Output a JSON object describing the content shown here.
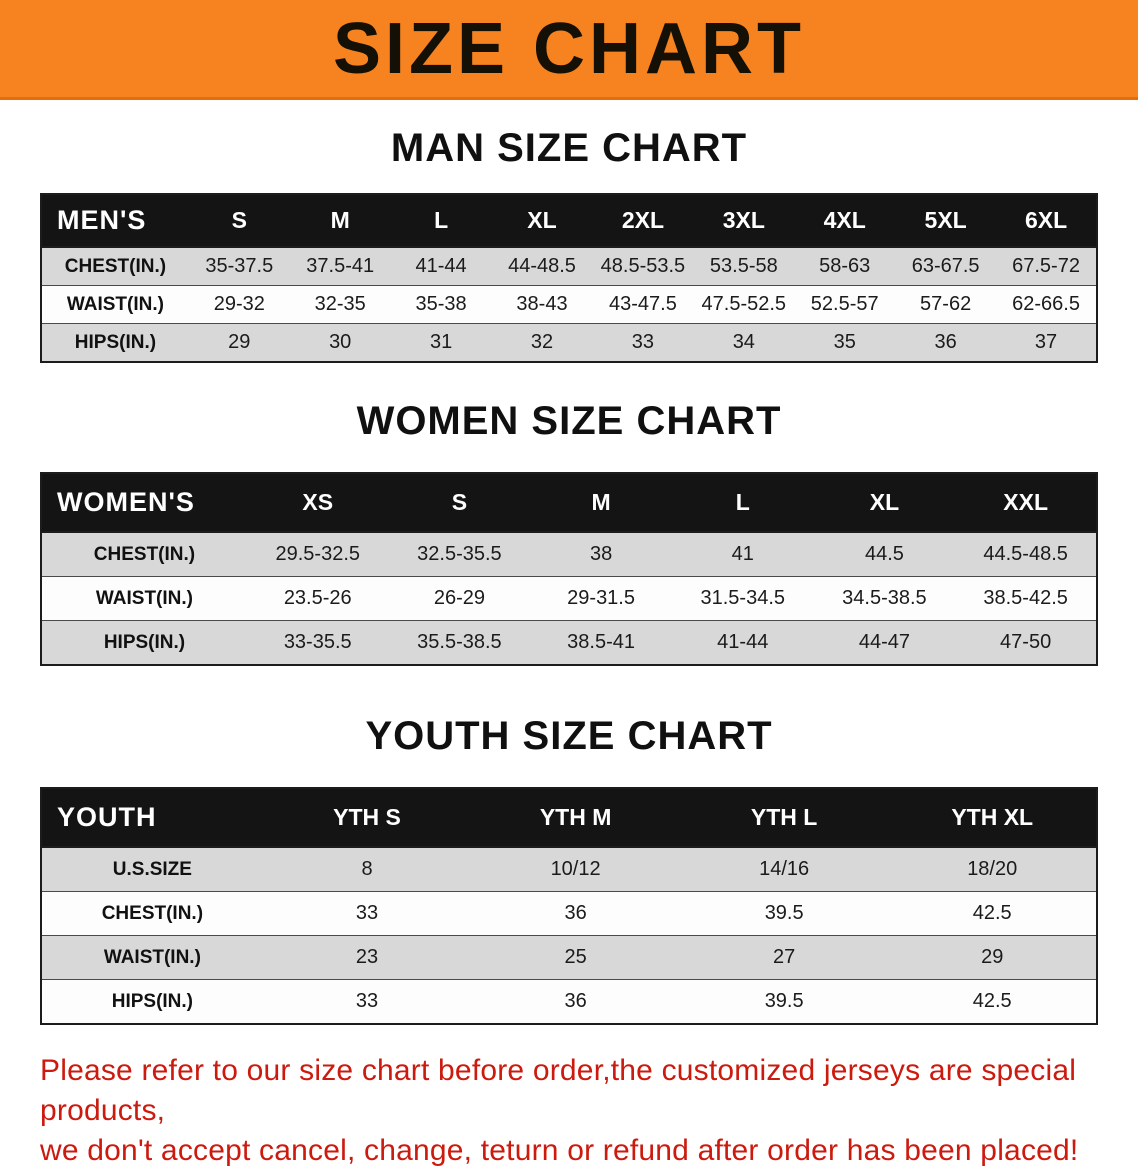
{
  "colors": {
    "banner_bg": "#f6831f",
    "header_bg": "#141414",
    "header_text": "#ffffff",
    "stripe": "#d8d8d8",
    "footer_text": "#cc1a0e"
  },
  "banner": {
    "title": "SIZE CHART"
  },
  "sections": [
    {
      "id": "men",
      "heading": "MAN SIZE CHART",
      "table": {
        "header": [
          "MEN'S",
          "S",
          "M",
          "L",
          "XL",
          "2XL",
          "3XL",
          "4XL",
          "5XL",
          "6XL"
        ],
        "rows": [
          [
            "CHEST(IN.)",
            "35-37.5",
            "37.5-41",
            "41-44",
            "44-48.5",
            "48.5-53.5",
            "53.5-58",
            "58-63",
            "63-67.5",
            "67.5-72"
          ],
          [
            "WAIST(IN.)",
            "29-32",
            "32-35",
            "35-38",
            "38-43",
            "43-47.5",
            "47.5-52.5",
            "52.5-57",
            "57-62",
            "62-66.5"
          ],
          [
            "HIPS(IN.)",
            "29",
            "30",
            "31",
            "32",
            "33",
            "34",
            "35",
            "36",
            "37"
          ]
        ]
      }
    },
    {
      "id": "women",
      "heading": "WOMEN SIZE CHART",
      "table": {
        "header": [
          "WOMEN'S",
          "XS",
          "S",
          "M",
          "L",
          "XL",
          "XXL"
        ],
        "rows": [
          [
            "CHEST(IN.)",
            "29.5-32.5",
            "32.5-35.5",
            "38",
            "41",
            "44.5",
            "44.5-48.5"
          ],
          [
            "WAIST(IN.)",
            "23.5-26",
            "26-29",
            "29-31.5",
            "31.5-34.5",
            "34.5-38.5",
            "38.5-42.5"
          ],
          [
            "HIPS(IN.)",
            "33-35.5",
            "35.5-38.5",
            "38.5-41",
            "41-44",
            "44-47",
            "47-50"
          ]
        ]
      }
    },
    {
      "id": "youth",
      "heading": "YOUTH SIZE CHART",
      "table": {
        "header": [
          "YOUTH",
          "YTH S",
          "YTH M",
          "YTH L",
          "YTH XL"
        ],
        "rows": [
          [
            "U.S.SIZE",
            "8",
            "10/12",
            "14/16",
            "18/20"
          ],
          [
            "CHEST(IN.)",
            "33",
            "36",
            "39.5",
            "42.5"
          ],
          [
            "WAIST(IN.)",
            "23",
            "25",
            "27",
            "29"
          ],
          [
            "HIPS(IN.)",
            "33",
            "36",
            "39.5",
            "42.5"
          ]
        ]
      }
    }
  ],
  "footer": {
    "lines": [
      "Please refer to our size chart before order,the customized jerseys are special products,",
      "we don't accept cancel, change, teturn or refund after order has been placed!"
    ]
  }
}
